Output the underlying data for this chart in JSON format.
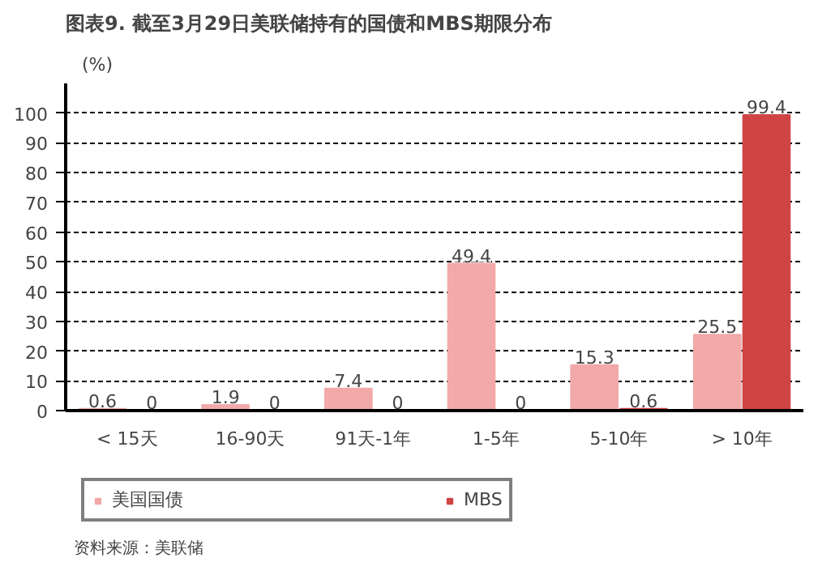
{
  "chart_data": {
    "type": "bar",
    "title": "图表9. 截至3月29日美联储持有的国债和MBS期限分布",
    "ylabel": "(%)",
    "categories": [
      "< 15天",
      "16-90天",
      "91天-1年",
      "1-5年",
      "5-10年",
      "> 10年"
    ],
    "series": [
      {
        "name": "美国国债",
        "color": "#f2a9a9",
        "values": [
          0.6,
          1.9,
          7.4,
          49.4,
          15.3,
          25.5
        ]
      },
      {
        "name": "MBS",
        "color": "#d04444",
        "values": [
          0,
          0,
          0,
          0,
          0.6,
          99.4
        ]
      }
    ],
    "ylim": [
      0,
      110
    ],
    "yticks": [
      0,
      10,
      20,
      30,
      40,
      50,
      60,
      70,
      80,
      90,
      100
    ],
    "grid": "y",
    "data_labels": true,
    "legend": "bottom",
    "annotations": [
      "资料来源：美联储"
    ]
  }
}
